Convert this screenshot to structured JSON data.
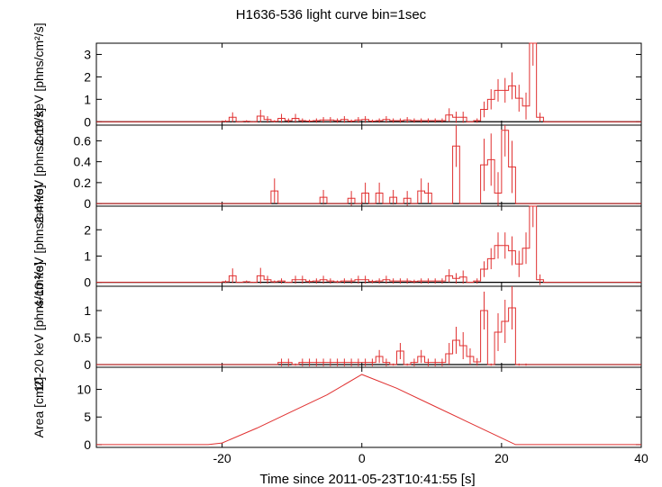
{
  "title": "H1636-536 light curve bin=1sec",
  "chart_data": {
    "type": "line",
    "title": "H1636-536 light curve bin=1sec",
    "xlabel": "Time since 2011-05-23T10:41:55 [s]",
    "xlim": [
      -38,
      40
    ],
    "xticks": [
      -20,
      0,
      20,
      40
    ],
    "colors": {
      "data": "#e03030",
      "axis": "#000000",
      "zero": "#000000"
    },
    "panels": [
      {
        "ylabel": "2-10 keV [phns/cm²/s]",
        "ylim": [
          -0.15,
          3.5
        ],
        "yticks": [
          0,
          1,
          2,
          3
        ],
        "bin_start": -20,
        "values": [
          0.02,
          0.2,
          0.0,
          0.02,
          0.0,
          0.25,
          0.1,
          0.02,
          0.15,
          0.05,
          0.15,
          0.05,
          0.03,
          0.05,
          0.08,
          0.08,
          0.05,
          0.1,
          0.03,
          0.08,
          0.1,
          0.03,
          0.05,
          0.1,
          0.05,
          0.05,
          0.08,
          0.05,
          0.05,
          0.05,
          0.05,
          0.05,
          0.3,
          0.2,
          0.2,
          0.0,
          0.05,
          0.55,
          1.0,
          1.4,
          1.4,
          1.6,
          1.05,
          0.7,
          3.5,
          0.2,
          0.0
        ],
        "errors": [
          0.05,
          0.22,
          0.02,
          0.05,
          0.02,
          0.28,
          0.15,
          0.05,
          0.2,
          0.1,
          0.2,
          0.1,
          0.07,
          0.1,
          0.13,
          0.13,
          0.1,
          0.15,
          0.07,
          0.13,
          0.15,
          0.07,
          0.1,
          0.15,
          0.1,
          0.1,
          0.13,
          0.1,
          0.1,
          0.1,
          0.1,
          0.1,
          0.3,
          0.25,
          0.25,
          0.02,
          0.1,
          0.35,
          0.45,
          0.5,
          0.55,
          0.6,
          0.6,
          0.6,
          1.0,
          0.2,
          0.02
        ]
      },
      {
        "ylabel": "2-4 keV [phns/cm²/s]",
        "ylim": [
          -0.025,
          0.75
        ],
        "yticks": [
          0,
          0.2,
          0.4,
          0.6
        ],
        "tick_labels": [
          "0",
          "0.2",
          "0.4",
          "0.6"
        ],
        "bin_start": -20,
        "values": [
          0,
          0,
          0,
          0,
          0,
          0,
          0,
          0.12,
          0,
          0,
          0,
          0,
          0,
          0,
          0.06,
          0,
          0,
          0,
          0.05,
          0,
          0.1,
          0,
          0.1,
          0,
          0.06,
          0,
          0.05,
          0,
          0.12,
          0.1,
          0,
          0,
          0,
          0.55,
          0,
          0,
          0,
          0.37,
          0.42,
          0.1,
          0.7,
          0.35,
          0,
          0
        ],
        "errors": [
          0,
          0,
          0,
          0,
          0,
          0,
          0,
          0.12,
          0,
          0,
          0,
          0,
          0,
          0,
          0.07,
          0,
          0,
          0,
          0.07,
          0,
          0.1,
          0,
          0.1,
          0,
          0.07,
          0,
          0.07,
          0,
          0.12,
          0.1,
          0,
          0,
          0,
          0.2,
          0,
          0,
          0,
          0.25,
          0.25,
          0.2,
          0.25,
          0.25,
          0,
          0
        ]
      },
      {
        "ylabel": "4-10 keV [phns/cm²/s]",
        "ylim": [
          -0.15,
          2.9
        ],
        "yticks": [
          0,
          1,
          2
        ],
        "bin_start": -20,
        "values": [
          0.02,
          0.25,
          0.0,
          0.02,
          0.0,
          0.25,
          0.1,
          0.02,
          0.05,
          0.0,
          0.1,
          0.1,
          0.03,
          0.05,
          0.1,
          0.05,
          0.02,
          0.05,
          0.05,
          0.1,
          0.1,
          0.03,
          0.05,
          0.1,
          0.05,
          0.05,
          0.05,
          0.03,
          0.05,
          0.05,
          0.05,
          0.05,
          0.25,
          0.15,
          0.2,
          0.0,
          0.05,
          0.5,
          0.9,
          1.4,
          1.4,
          1.2,
          0.7,
          1.3,
          2.9,
          0.1,
          0.0
        ],
        "errors": [
          0.05,
          0.28,
          0.02,
          0.05,
          0.02,
          0.3,
          0.15,
          0.05,
          0.1,
          0.02,
          0.15,
          0.15,
          0.07,
          0.1,
          0.15,
          0.1,
          0.05,
          0.1,
          0.1,
          0.15,
          0.15,
          0.07,
          0.1,
          0.15,
          0.1,
          0.1,
          0.1,
          0.07,
          0.1,
          0.1,
          0.1,
          0.1,
          0.25,
          0.2,
          0.25,
          0.02,
          0.1,
          0.3,
          0.4,
          0.5,
          0.5,
          0.55,
          0.5,
          0.6,
          0.8,
          0.2,
          0.02
        ]
      },
      {
        "ylabel": "10-20 keV [phns/cm²/s]",
        "ylim": [
          -0.05,
          1.45
        ],
        "yticks": [
          0,
          0.5,
          1
        ],
        "bin_start": -20,
        "values": [
          0,
          0,
          0,
          0,
          0,
          0,
          0,
          0,
          0.04,
          0.04,
          0.0,
          0.04,
          0.04,
          0.04,
          0.04,
          0.04,
          0.04,
          0.04,
          0.04,
          0.04,
          0.04,
          0.04,
          0.15,
          0.04,
          0.0,
          0.25,
          0.0,
          0.04,
          0.15,
          0.04,
          0.04,
          0.04,
          0.2,
          0.45,
          0.35,
          0.15,
          0.05,
          1.0,
          0.0,
          0.6,
          0.8,
          1.05,
          0.0,
          0.0
        ],
        "errors": [
          0,
          0,
          0,
          0,
          0,
          0,
          0,
          0,
          0.07,
          0.07,
          0.02,
          0.07,
          0.07,
          0.07,
          0.07,
          0.07,
          0.07,
          0.07,
          0.07,
          0.07,
          0.07,
          0.07,
          0.12,
          0.07,
          0.02,
          0.15,
          0.02,
          0.07,
          0.12,
          0.07,
          0.07,
          0.07,
          0.2,
          0.25,
          0.25,
          0.15,
          0.07,
          0.35,
          0.02,
          0.35,
          0.4,
          0.4,
          0.02,
          0.02
        ]
      },
      {
        "ylabel": "Area [cm2]",
        "ylim": [
          -0.5,
          14
        ],
        "yticks": [
          0,
          5,
          10
        ],
        "curve": {
          "x": [
            -38,
            -22,
            -20,
            -15,
            -10,
            -5,
            0,
            5,
            10,
            15,
            20,
            22,
            40
          ],
          "y": [
            0,
            0,
            0.3,
            3.0,
            6.0,
            9.0,
            12.7,
            10.2,
            7.2,
            4.2,
            1.2,
            0,
            0
          ]
        }
      }
    ]
  }
}
